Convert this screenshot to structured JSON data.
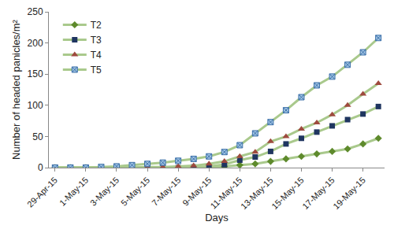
{
  "chart_data": {
    "type": "line",
    "x_label": "Days",
    "y_label": "Number of headed panicles/m²",
    "categories": [
      "29-Apr-15",
      null,
      "1-May-15",
      null,
      "3-May-15",
      null,
      "5-May-15",
      null,
      "7-May-15",
      null,
      "9-May-15",
      null,
      "11-May-15",
      null,
      "13-May-15",
      null,
      "15-May-15",
      null,
      "17-May-15",
      null,
      "19-May-15",
      null
    ],
    "series": [
      {
        "name": "T2",
        "color": "#5e8a2c",
        "marker": "diamond",
        "values": [
          0,
          0,
          0,
          0,
          0,
          0,
          0,
          0,
          0,
          0,
          0,
          2,
          4,
          6,
          10,
          14,
          18,
          22,
          26,
          30,
          38,
          47
        ]
      },
      {
        "name": "T3",
        "color": "#1f3560",
        "marker": "square",
        "values": [
          0,
          0,
          0,
          0,
          0,
          0,
          0,
          0,
          0,
          1,
          2,
          5,
          12,
          17,
          26,
          38,
          47,
          57,
          67,
          77,
          86,
          98
        ]
      },
      {
        "name": "T4",
        "color": "#9e4a3e",
        "marker": "triangle-up",
        "values": [
          0,
          0,
          0,
          0,
          0,
          0,
          1,
          1,
          2,
          3,
          6,
          10,
          18,
          25,
          42,
          50,
          62,
          72,
          85,
          100,
          118,
          135
        ]
      },
      {
        "name": "T5",
        "color": "#9fc3e3",
        "marker": "square-x",
        "values": [
          0,
          0,
          0,
          1,
          2,
          4,
          6,
          8,
          11,
          14,
          18,
          25,
          36,
          55,
          73,
          92,
          113,
          132,
          146,
          165,
          185,
          208
        ]
      }
    ],
    "ylim": [
      0,
      250
    ],
    "yticks": [
      0,
      50,
      100,
      150,
      200,
      250
    ],
    "grid": false,
    "legend": "top-left"
  }
}
